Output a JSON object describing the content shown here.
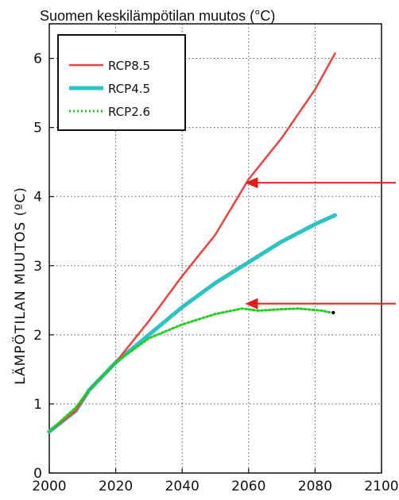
{
  "chart_data": {
    "type": "line",
    "title": "Suomen keskilämpötilan muutos (°C)",
    "xlabel": "",
    "ylabel": "LÄMPÖTILAN MUUTOS (ºC)",
    "xlim": [
      2000,
      2100
    ],
    "ylim": [
      0,
      6.5
    ],
    "x_ticks": [
      "2000",
      "2020",
      "2040",
      "2060",
      "2080",
      "2100"
    ],
    "y_ticks": [
      "0",
      "1",
      "2",
      "3",
      "4",
      "5",
      "6"
    ],
    "grid": true,
    "legend_position": "top-left",
    "series": [
      {
        "name": "RCP8.5",
        "color": "#f0403c",
        "style": "thin-solid",
        "x": [
          2000,
          2008,
          2012,
          2020,
          2030,
          2040,
          2050,
          2060,
          2070,
          2080,
          2086
        ],
        "y": [
          0.6,
          0.9,
          1.2,
          1.6,
          2.2,
          2.85,
          3.45,
          4.25,
          4.85,
          5.55,
          6.07
        ]
      },
      {
        "name": "RCP4.5",
        "color": "#2bc3c3",
        "style": "thick-solid",
        "x": [
          2000,
          2008,
          2012,
          2020,
          2030,
          2040,
          2050,
          2060,
          2070,
          2080,
          2086
        ],
        "y": [
          0.6,
          0.9,
          1.2,
          1.6,
          2.0,
          2.4,
          2.75,
          3.05,
          3.35,
          3.6,
          3.73
        ]
      },
      {
        "name": "RCP2.6",
        "color": "#22cc22",
        "style": "dotted",
        "x": [
          2000,
          2008,
          2012,
          2020,
          2030,
          2040,
          2050,
          2058,
          2063,
          2070,
          2075,
          2082,
          2085
        ],
        "y": [
          0.6,
          0.95,
          1.2,
          1.6,
          1.95,
          2.15,
          2.3,
          2.38,
          2.35,
          2.37,
          2.38,
          2.35,
          2.32
        ]
      }
    ],
    "annotations": [
      {
        "type": "arrow",
        "color": "#e21b1b",
        "target_x": 2058,
        "target_y": 4.2
      },
      {
        "type": "arrow",
        "color": "#e21b1b",
        "target_x": 2058,
        "target_y": 2.45
      }
    ]
  }
}
